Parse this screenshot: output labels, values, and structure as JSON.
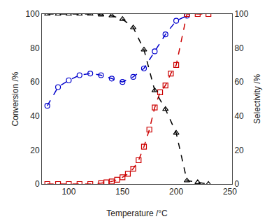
{
  "chart_data": {
    "type": "line",
    "xlabel": "Temperature /°C",
    "ylabel": "Conversion /%",
    "y2label": "Selectivity /%",
    "xlim": [
      75,
      252
    ],
    "xticks": [
      100,
      150,
      200,
      250
    ],
    "ylim": [
      0,
      100
    ],
    "yticks": [
      0,
      20,
      40,
      60,
      80,
      100
    ],
    "y2lim": [
      0,
      100
    ],
    "y2ticks": [
      0,
      20,
      40,
      60,
      80,
      100
    ],
    "grid": false,
    "series": [
      {
        "color": "#0000cc",
        "marker": "circle",
        "line_style": "dashed",
        "x": [
          80,
          90,
          100,
          110,
          120,
          130,
          140,
          150,
          160,
          170,
          180,
          190,
          200,
          210
        ],
        "values": [
          46,
          57,
          61,
          64,
          65,
          64,
          62,
          60,
          63,
          68,
          78,
          88,
          96,
          99
        ]
      },
      {
        "color": "#cc0000",
        "marker": "square",
        "line_style": "dashed",
        "axis": "y2",
        "x": [
          80,
          90,
          100,
          110,
          120,
          130,
          135,
          140,
          145,
          150,
          155,
          160,
          165,
          170,
          175,
          180,
          185,
          190,
          195,
          200,
          210,
          220,
          230
        ],
        "values": [
          0,
          0,
          0,
          0,
          0,
          0.5,
          1,
          1.5,
          2.5,
          4,
          6,
          9,
          14,
          22,
          32,
          45,
          54,
          58,
          65,
          70,
          100,
          100,
          100
        ]
      },
      {
        "color": "#000000",
        "marker": "triangle",
        "line_style": "dashed",
        "axis": "y2",
        "x": [
          80,
          90,
          100,
          110,
          120,
          130,
          140,
          150,
          160,
          170,
          180,
          190,
          200,
          210,
          220,
          230
        ],
        "values": [
          100,
          100,
          100,
          100,
          100,
          99.5,
          99,
          97,
          92,
          79,
          55,
          44,
          30,
          2,
          1,
          0
        ]
      }
    ]
  }
}
